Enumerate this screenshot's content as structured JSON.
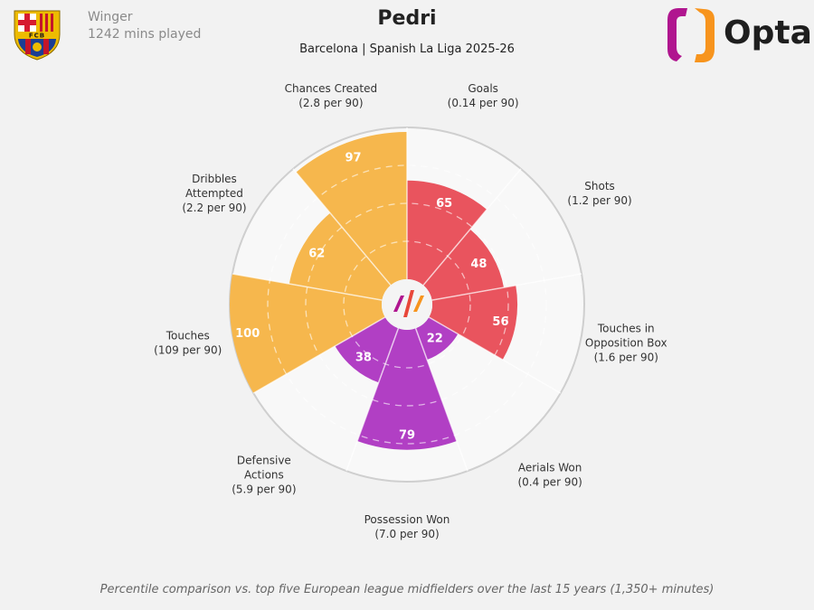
{
  "header": {
    "player": "Pedri",
    "subtitle": "Barcelona | Spanish La Liga 2025-26",
    "position": "Winger",
    "minutes": "1242 mins played",
    "brand": "Opta",
    "crest_text": "FCB"
  },
  "footer": "Percentile comparison vs. top five European league midfielders over the last 15 years (1,350+ minutes)",
  "colors": {
    "attacking": "#e9545e",
    "defending": "#b13fc4",
    "possession": "#f6b74d",
    "background": "#f2f2f2"
  },
  "chart_data": {
    "type": "pie",
    "subtype": "pizza/polar percentile",
    "rlim": [
      0,
      100
    ],
    "grid_rings": [
      25,
      50,
      75
    ],
    "categories": [
      {
        "label": "Goals",
        "sub": "(0.14 per 90)",
        "value": 65,
        "group": "attacking"
      },
      {
        "label": "Shots",
        "sub": "(1.2 per 90)",
        "value": 48,
        "group": "attacking"
      },
      {
        "label": "Touches in\nOpposition Box",
        "sub": "(1.6 per 90)",
        "value": 56,
        "group": "attacking"
      },
      {
        "label": "Aerials Won",
        "sub": "(0.4 per 90)",
        "value": 22,
        "group": "defending"
      },
      {
        "label": "Possession Won",
        "sub": "(7.0 per 90)",
        "value": 79,
        "group": "defending"
      },
      {
        "label": "Defensive\nActions",
        "sub": "(5.9 per 90)",
        "value": 38,
        "group": "defending"
      },
      {
        "label": "Touches",
        "sub": "(109 per 90)",
        "value": 100,
        "group": "possession"
      },
      {
        "label": "Dribbles\nAttempted",
        "sub": "(2.2 per 90)",
        "value": 62,
        "group": "possession"
      },
      {
        "label": "Chances Created",
        "sub": "(2.8 per 90)",
        "value": 97,
        "group": "possession"
      }
    ]
  }
}
